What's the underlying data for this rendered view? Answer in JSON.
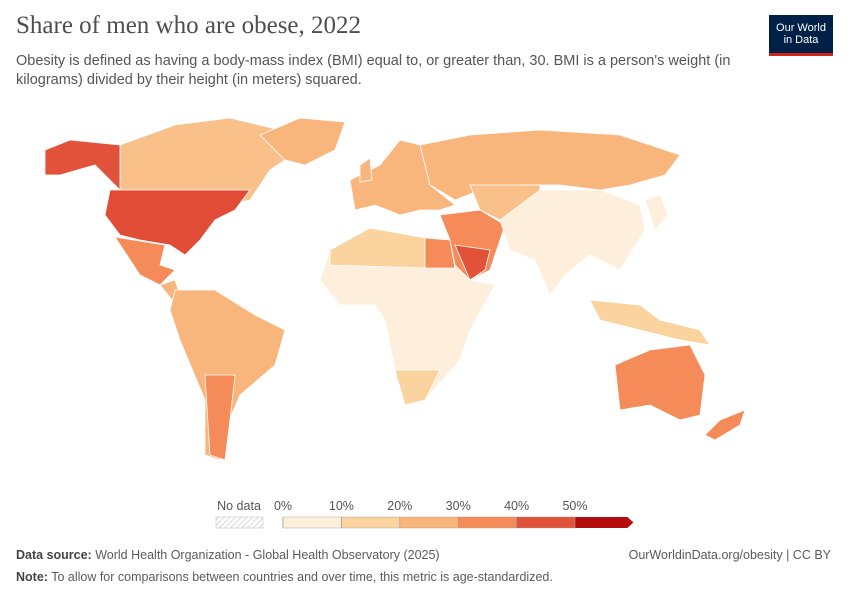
{
  "header": {
    "title": "Share of men who are obese, 2022",
    "subtitle": "Obesity is defined as having a body-mass index (BMI) equal to, or greater than, 30. BMI is a person's weight (in kilograms) divided by their height (in meters) squared.",
    "logo": [
      "Our World",
      "in Data"
    ]
  },
  "legend": {
    "no_data_label": "No data",
    "ticks": [
      {
        "value": 0,
        "label": "0%"
      },
      {
        "value": 10,
        "label": "10%"
      },
      {
        "value": 20,
        "label": "20%"
      },
      {
        "value": 30,
        "label": "30%"
      },
      {
        "value": 40,
        "label": "40%"
      },
      {
        "value": 50,
        "label": "50%"
      }
    ],
    "colors": [
      "#fdefdb",
      "#fbd39f",
      "#f9b67c",
      "#f58b58",
      "#e2523a",
      "#b40d0d"
    ]
  },
  "footer": {
    "source_label": "Data source:",
    "source": "World Health Organization - Global Health Observatory (2025)",
    "url": "OurWorldinData.org/obesity | CC BY",
    "note_label": "Note:",
    "note": "To allow for comparisons between countries and over time, this metric is age-standardized."
  }
}
